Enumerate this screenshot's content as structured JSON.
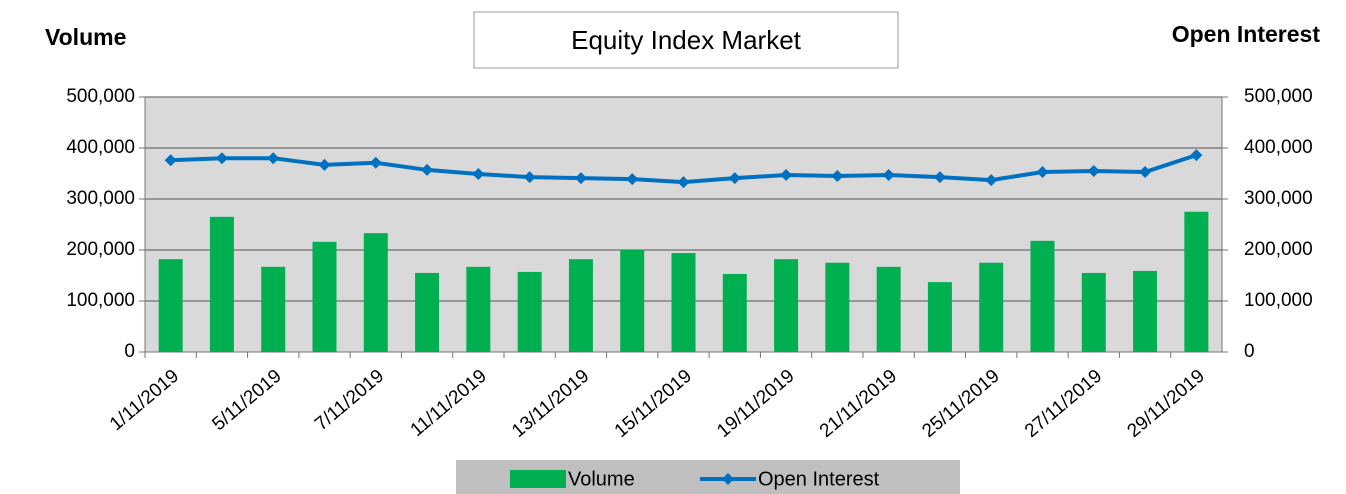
{
  "chart_data": {
    "type": "bar-line",
    "title": "Equity Index Market",
    "y_label": "Volume",
    "y2_label": "Open Interest",
    "categories": [
      "1/11/2019",
      null,
      "5/11/2019",
      null,
      "7/11/2019",
      null,
      "11/11/2019",
      null,
      "13/11/2019",
      null,
      "15/11/2019",
      null,
      "19/11/2019",
      null,
      "21/11/2019",
      null,
      "25/11/2019",
      null,
      "27/11/2019",
      null,
      "29/11/2019"
    ],
    "series": [
      {
        "name": "Volume",
        "color": "#00b050",
        "type": "bar",
        "values": [
          182000,
          265000,
          167000,
          216000,
          233000,
          155000,
          167000,
          157000,
          182000,
          200000,
          194000,
          153000,
          182000,
          175000,
          167000,
          137000,
          175000,
          218000,
          155000,
          159000,
          275000
        ]
      },
      {
        "name": "Open Interest",
        "color": "#0070c0",
        "type": "line",
        "axis": "y2",
        "values": [
          376000,
          380000,
          380000,
          367000,
          371000,
          357000,
          349000,
          343000,
          341000,
          339000,
          333000,
          341000,
          347000,
          345000,
          347000,
          343000,
          337000,
          353000,
          355000,
          353000,
          386000
        ]
      }
    ],
    "ylim": [
      0,
      500000
    ],
    "yticks": [
      0,
      {
        "value": 100000,
        "label": "100,000"
      },
      {
        "value": 200000,
        "label": "200,000"
      },
      {
        "value": 300000,
        "label": "300,000"
      },
      {
        "value": 400000,
        "label": "400,000"
      },
      {
        "value": 500000,
        "label": "500,000"
      }
    ],
    "y2lim": [
      0,
      500000
    ],
    "y2ticks": [
      0,
      {
        "value": 100000,
        "label": "100,000"
      },
      {
        "value": 200000,
        "label": "200,000"
      },
      {
        "value": 300000,
        "label": "300,000"
      },
      {
        "value": 400000,
        "label": "400,000"
      },
      {
        "value": 500000,
        "label": "500,000"
      }
    ],
    "grid": true,
    "legend": "bottom"
  }
}
